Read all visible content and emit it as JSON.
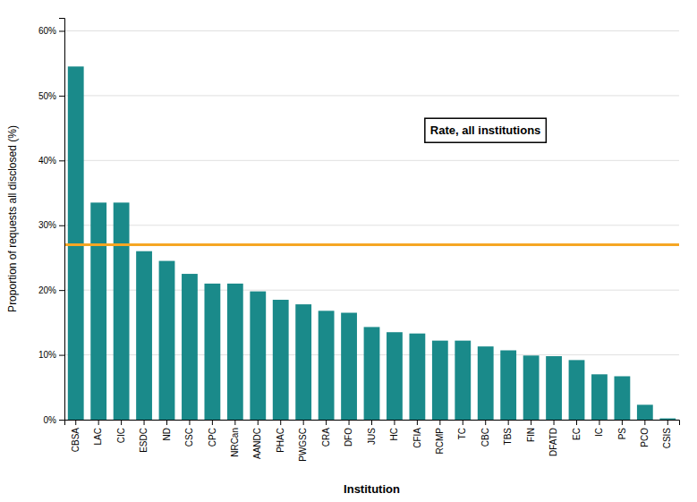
{
  "chart_data": {
    "type": "bar",
    "categories": [
      "CBSA",
      "LAC",
      "CIC",
      "ESDC",
      "ND",
      "CSC",
      "CPC",
      "NRCan",
      "AANDC",
      "PHAC",
      "PWGSC",
      "CRA",
      "DFO",
      "JUS",
      "HC",
      "CFIA",
      "RCMP",
      "TC",
      "CBC",
      "TBS",
      "FIN",
      "DFATD",
      "EC",
      "IC",
      "PS",
      "PCO",
      "CSIS"
    ],
    "values": [
      54.5,
      33.5,
      33.5,
      26.0,
      24.5,
      22.5,
      21.0,
      21.0,
      19.8,
      18.5,
      17.8,
      16.8,
      16.5,
      14.3,
      13.5,
      13.3,
      12.2,
      12.2,
      11.3,
      10.7,
      9.9,
      9.8,
      9.2,
      7.0,
      6.7,
      2.3,
      0.2
    ],
    "color": "#1a8a8a",
    "reference_line": {
      "value": 27.0,
      "label": "Rate, all institutions",
      "color": "#F5A623"
    },
    "x_label": "Institution",
    "y_label": "Proportion of requests all disclosed  (%)",
    "ylim": [
      0,
      62
    ],
    "yticks": [
      {
        "value": 0,
        "label": "0%"
      },
      {
        "value": 10,
        "label": "10%"
      },
      {
        "value": 20,
        "label": "20%"
      },
      {
        "value": 30,
        "label": "30%"
      },
      {
        "value": 40,
        "label": "40%"
      },
      {
        "value": 50,
        "label": "50%"
      },
      {
        "value": 60,
        "label": "60%"
      }
    ],
    "grid": true
  }
}
